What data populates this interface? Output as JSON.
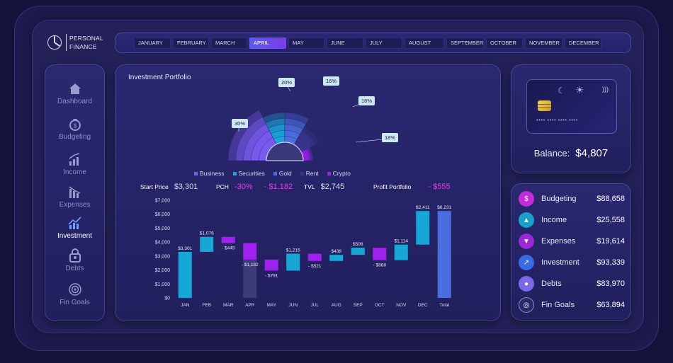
{
  "app": {
    "logo_line1": "PERSONAL",
    "logo_line2": "FINANCE"
  },
  "months": [
    "JANUARY",
    "FEBRUARY",
    "MARCH",
    "APRIL",
    "MAY",
    "JUNE",
    "JULY",
    "AUGUST",
    "SEPTEMBER",
    "OCTOBER",
    "NOVEMBER",
    "DECEMBER"
  ],
  "active_month": "APRIL",
  "sidebar": {
    "items": [
      {
        "label": "Dashboard",
        "icon": "home-icon"
      },
      {
        "label": "Budgeting",
        "icon": "money-bag-icon"
      },
      {
        "label": "Income",
        "icon": "chart-up-icon"
      },
      {
        "label": "Expenses",
        "icon": "chart-down-icon"
      },
      {
        "label": "Investment",
        "icon": "investment-icon"
      },
      {
        "label": "Debts",
        "icon": "lock-icon"
      },
      {
        "label": "Fin Goals",
        "icon": "target-icon"
      }
    ],
    "active": "Investment"
  },
  "portfolio": {
    "title": "Investment Portfolio",
    "legend": [
      {
        "name": "Business",
        "color": "#7a5cf0"
      },
      {
        "name": "Securities",
        "color": "#17a7d6"
      },
      {
        "name": "Gold",
        "color": "#4a6ee0"
      },
      {
        "name": "Rent",
        "color": "#3a3690"
      },
      {
        "name": "Crypto",
        "color": "#a020f0"
      }
    ],
    "stats": {
      "start_price_label": "Start Price",
      "start_price": "$3,301",
      "pch_label": "PCH",
      "pch_pct": "-30%",
      "pch_val": "- $1,182",
      "tvl_label": "TVL",
      "tvl": "$2,745",
      "profit_label": "Profit Portfolio",
      "profit": "- $555"
    }
  },
  "chart_data": [
    {
      "type": "pie",
      "variant": "half-rose",
      "title": "Investment Portfolio",
      "series": [
        {
          "name": "Business",
          "pct_label": "30%"
        },
        {
          "name": "Securities",
          "pct_label": "20%"
        },
        {
          "name": "Gold",
          "pct_label": "16%"
        },
        {
          "name": "Rent",
          "pct_label": "16%"
        },
        {
          "name": "Crypto",
          "pct_label": "18%"
        }
      ]
    },
    {
      "type": "bar",
      "variant": "waterfall",
      "categories": [
        "JAN",
        "FEB",
        "MAR",
        "APR",
        "MAY",
        "JUN",
        "JUL",
        "AUG",
        "SEP",
        "OCT",
        "NOV",
        "DEC",
        "Total"
      ],
      "deltas": [
        3301,
        1076,
        -449,
        -1182,
        -791,
        1215,
        -521,
        438,
        506,
        -888,
        1114,
        2411,
        6231
      ],
      "labels": [
        "$3,301",
        "$1,076",
        "- $449",
        "- $1,182",
        "- $791",
        "$1,215",
        "- $521",
        "$438",
        "$506",
        "- $888",
        "$1,114",
        "$2,411",
        "$6,231"
      ],
      "yticks": [
        "$0",
        "$1,000",
        "$2,000",
        "$3,000",
        "$4,000",
        "$5,000",
        "$6,000",
        "$7,000"
      ],
      "ylim": [
        0,
        7000
      ],
      "highlight": "APR",
      "colors": {
        "up": "#17a7d6",
        "down": "#a020f0",
        "total": "#4a6ee0"
      }
    }
  ],
  "card": {
    "number": "**** **** **** ****",
    "balance_label": "Balance:",
    "balance": "$4,807"
  },
  "summary": [
    {
      "label": "Budgeting",
      "value": "$88,658",
      "color": "#c02cd8",
      "icon": "money-bag-icon"
    },
    {
      "label": "Income",
      "value": "$25,558",
      "color": "#1aa0c8",
      "icon": "chart-up-icon"
    },
    {
      "label": "Expenses",
      "value": "$19,614",
      "color": "#9a28d8",
      "icon": "chart-down-icon"
    },
    {
      "label": "Investment",
      "value": "$93,339",
      "color": "#3a6ae8",
      "icon": "investment-icon"
    },
    {
      "label": "Debts",
      "value": "$83,970",
      "color": "#7a68e8",
      "icon": "lock-icon"
    },
    {
      "label": "Fin Goals",
      "value": "$63,894",
      "color": "#2a2a6a",
      "icon": "target-icon"
    }
  ]
}
